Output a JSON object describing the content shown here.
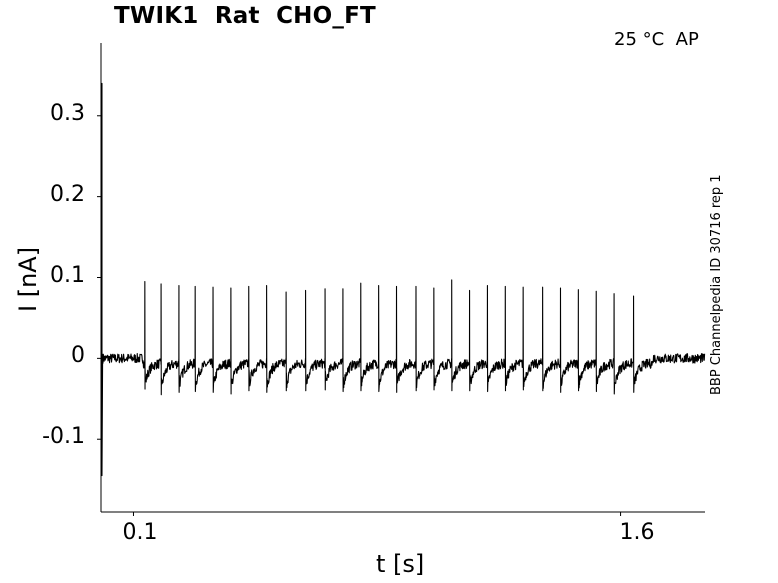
{
  "header": {
    "title": "TWIK1  Rat  CHO_FT",
    "condition": "25 °C  AP",
    "side_label": "BBP Channelpedia ID 30716 rep 1"
  },
  "chart_data": {
    "type": "line",
    "title": "TWIK1  Rat  CHO_FT",
    "xlabel": "t [s]",
    "ylabel": "I [nA]",
    "xlim": [
      0.0,
      1.86
    ],
    "ylim": [
      -0.19,
      0.39
    ],
    "xticks": [
      0.1,
      1.6
    ],
    "xtick_labels": [
      "0.1",
      "1.6"
    ],
    "yticks": [
      0.3,
      0.2,
      0.1,
      0,
      -0.1
    ],
    "ytick_labels": [
      "0.3",
      "0.2",
      "0.1",
      "0",
      "-0.1"
    ],
    "grid": false,
    "series": [
      {
        "color": "#000000",
        "baseline": 0.0,
        "noise_amplitude": 0.006,
        "stim_start": 0.13,
        "stim_end": 1.7,
        "initial_transient": {
          "x": 0.003,
          "max": 0.34,
          "min": -0.145
        },
        "spike_times": [
          0.135,
          0.185,
          0.24,
          0.29,
          0.345,
          0.4,
          0.455,
          0.51,
          0.57,
          0.63,
          0.69,
          0.745,
          0.8,
          0.855,
          0.91,
          0.97,
          1.025,
          1.08,
          1.135,
          1.19,
          1.245,
          1.3,
          1.36,
          1.415,
          1.47,
          1.525,
          1.58,
          1.64
        ],
        "spike_peaks": [
          0.095,
          0.092,
          0.09,
          0.089,
          0.088,
          0.087,
          0.089,
          0.09,
          0.082,
          0.084,
          0.086,
          0.086,
          0.093,
          0.09,
          0.089,
          0.089,
          0.087,
          0.097,
          0.084,
          0.09,
          0.089,
          0.088,
          0.088,
          0.087,
          0.085,
          0.083,
          0.08,
          0.077
        ],
        "spike_troughs": [
          -0.038,
          -0.045,
          -0.042,
          -0.041,
          -0.042,
          -0.044,
          -0.04,
          -0.042,
          -0.04,
          -0.04,
          -0.039,
          -0.041,
          -0.04,
          -0.041,
          -0.042,
          -0.04,
          -0.039,
          -0.04,
          -0.04,
          -0.041,
          -0.04,
          -0.039,
          -0.04,
          -0.042,
          -0.04,
          -0.041,
          -0.044,
          -0.042
        ]
      }
    ]
  }
}
